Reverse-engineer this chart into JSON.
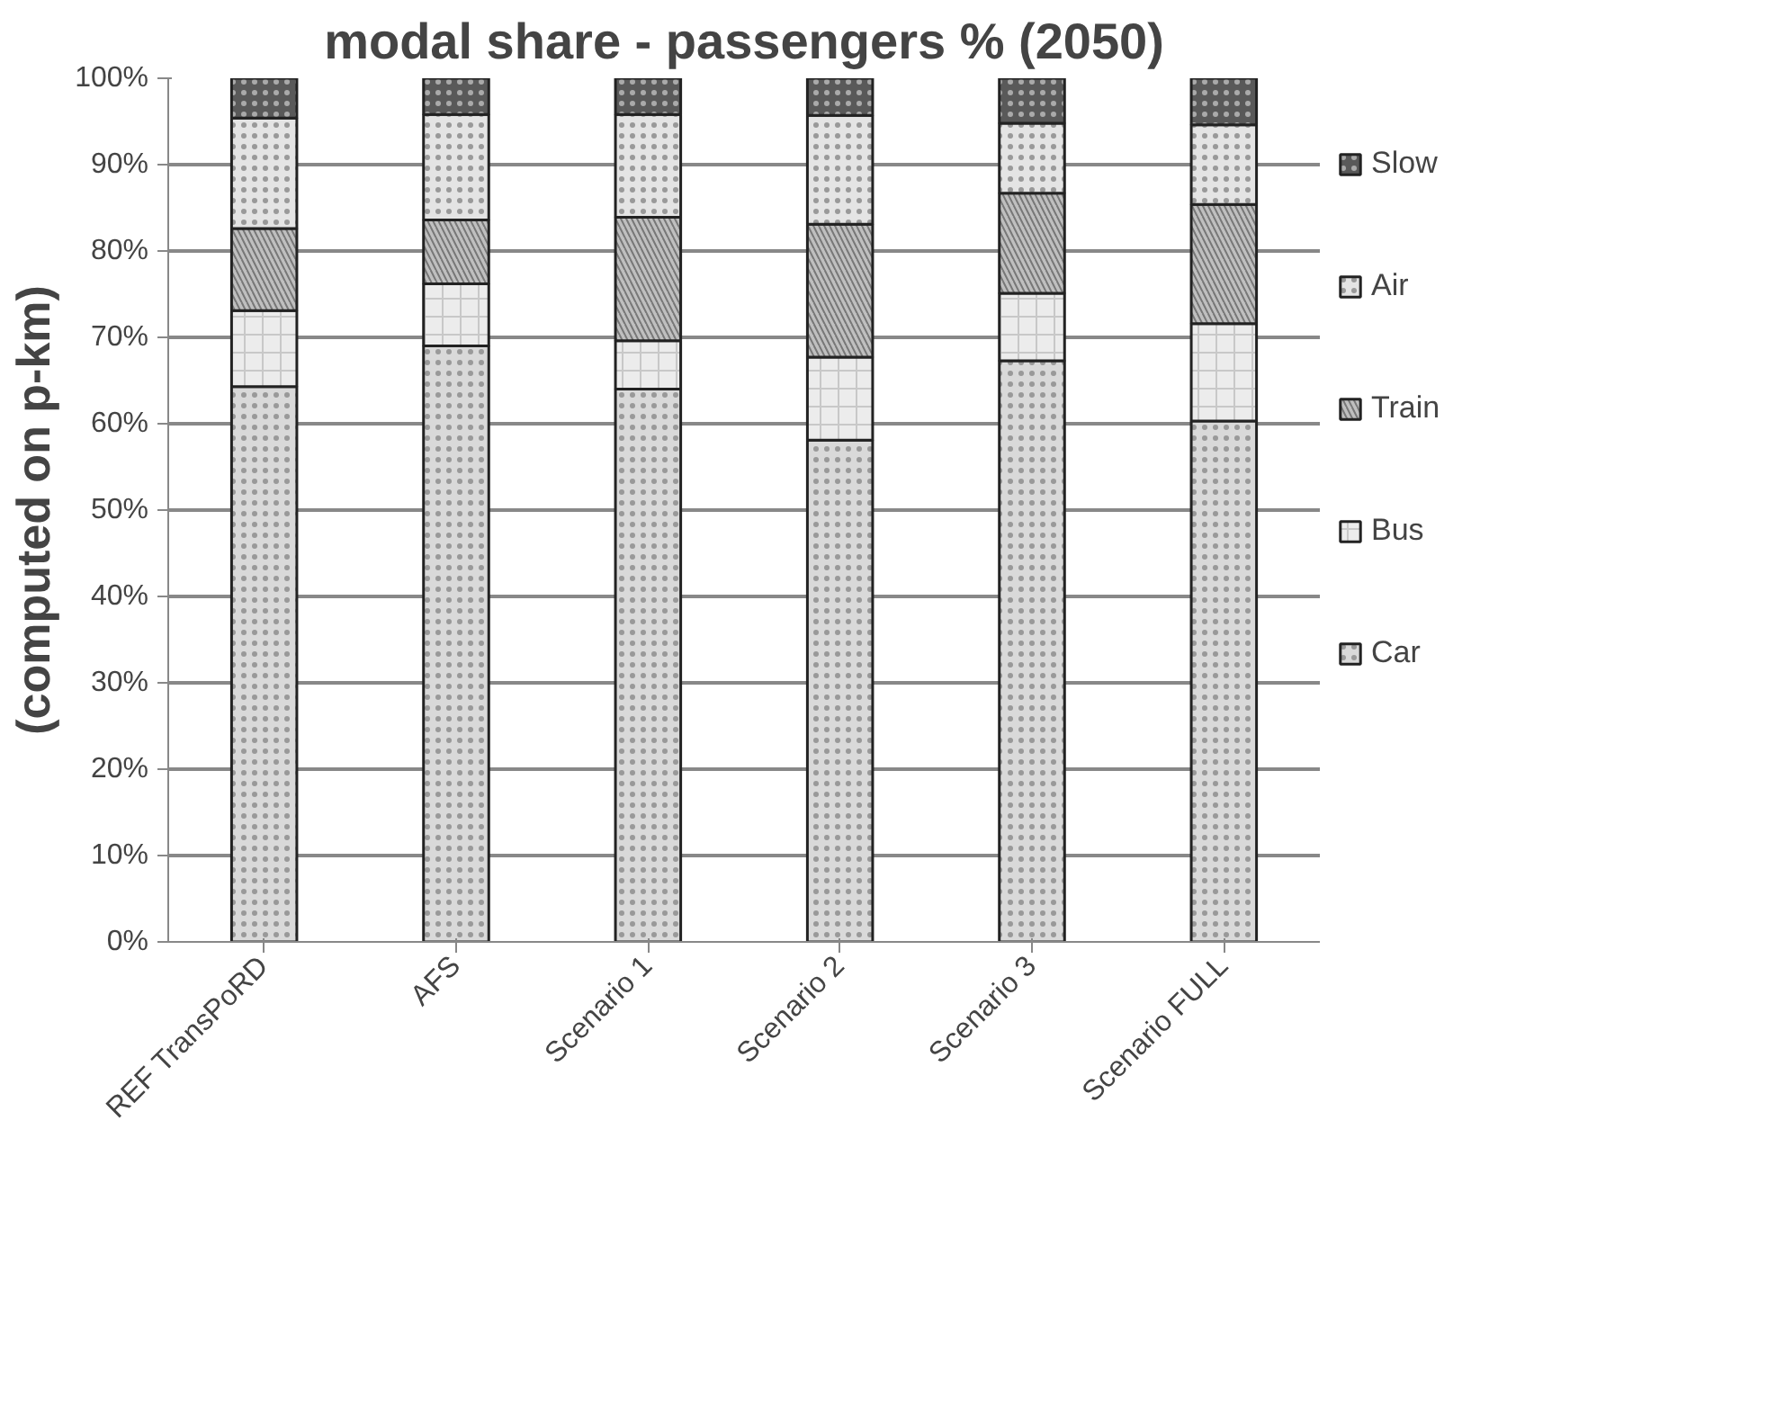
{
  "chart_data": {
    "type": "bar",
    "title": "modal share - passengers % (2050)",
    "ylabel": "(computed on p-km)",
    "categories": [
      "REF TransPoRD",
      "AFS",
      "Scenario 1",
      "Scenario 2",
      "Scenario 3",
      "Scenario FULL"
    ],
    "stacked": true,
    "series": [
      {
        "name": "Car",
        "color": "#d9d9d9",
        "values": [
          64.3,
          69.0,
          64.0,
          58.1,
          67.3,
          60.3
        ]
      },
      {
        "name": "Bus",
        "color": "#ececec",
        "values": [
          8.8,
          7.2,
          5.6,
          9.6,
          7.8,
          11.3
        ]
      },
      {
        "name": "Train",
        "color": "#bfbfbf",
        "values": [
          9.5,
          7.4,
          14.3,
          15.4,
          11.6,
          13.8
        ]
      },
      {
        "name": "Air",
        "color": "#e4e4e4",
        "values": [
          12.8,
          12.2,
          11.9,
          12.6,
          8.1,
          9.2
        ]
      },
      {
        "name": "Slow",
        "color": "#595959",
        "values": [
          4.6,
          4.2,
          4.2,
          4.3,
          5.2,
          5.4
        ]
      }
    ],
    "ylim": [
      0,
      100
    ],
    "yticks": [
      {
        "value": 0,
        "label": "0%"
      },
      {
        "value": 10,
        "label": "10%"
      },
      {
        "value": 20,
        "label": "20%"
      },
      {
        "value": 30,
        "label": "30%"
      },
      {
        "value": 40,
        "label": "40%"
      },
      {
        "value": 50,
        "label": "50%"
      },
      {
        "value": 60,
        "label": "60%"
      },
      {
        "value": 70,
        "label": "70%"
      },
      {
        "value": 80,
        "label": "80%"
      },
      {
        "value": 90,
        "label": "90%"
      },
      {
        "value": 100,
        "label": "100%"
      }
    ],
    "grid": "y",
    "legend": "right"
  }
}
